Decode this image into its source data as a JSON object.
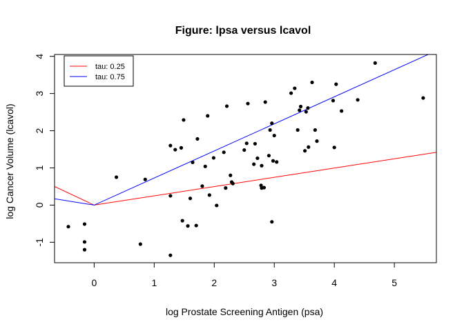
{
  "chart_data": {
    "type": "scatter",
    "title": "Figure: lpsa versus lcavol",
    "xlabel": "log Prostate Screening Antigen (psa)",
    "ylabel": "log Cancer Volume (lcavol)",
    "xlim": [
      -0.66,
      5.7
    ],
    "ylim": [
      -1.55,
      4.05
    ],
    "xticks": [
      0,
      1,
      2,
      3,
      4,
      5
    ],
    "yticks": [
      -1,
      0,
      1,
      2,
      3,
      4
    ],
    "xtick_labels": [
      "0",
      "1",
      "2",
      "3",
      "4",
      "5"
    ],
    "ytick_labels": [
      "-1",
      "0",
      "1",
      "2",
      "3",
      "4"
    ],
    "grid": false,
    "legend_position": "top-left",
    "points": [
      [
        -0.43,
        -0.58
      ],
      [
        -0.16,
        -0.99
      ],
      [
        -0.16,
        -0.51
      ],
      [
        -0.16,
        -1.2
      ],
      [
        0.37,
        0.75
      ],
      [
        0.77,
        -1.05
      ],
      [
        0.85,
        0.69
      ],
      [
        1.27,
        -1.35
      ],
      [
        1.27,
        1.6
      ],
      [
        1.27,
        0.25
      ],
      [
        1.35,
        1.49
      ],
      [
        1.45,
        1.54
      ],
      [
        1.47,
        -0.42
      ],
      [
        1.49,
        2.29
      ],
      [
        1.56,
        -0.56
      ],
      [
        1.6,
        0.18
      ],
      [
        1.64,
        1.15
      ],
      [
        1.7,
        -0.55
      ],
      [
        1.72,
        1.78
      ],
      [
        1.8,
        0.51
      ],
      [
        1.85,
        1.04
      ],
      [
        1.89,
        2.4
      ],
      [
        1.92,
        0.27
      ],
      [
        1.99,
        1.27
      ],
      [
        2.04,
        -0.01
      ],
      [
        2.16,
        1.42
      ],
      [
        2.19,
        0.46
      ],
      [
        2.21,
        2.66
      ],
      [
        2.27,
        0.8
      ],
      [
        2.29,
        0.62
      ],
      [
        2.31,
        0.58
      ],
      [
        2.5,
        1.48
      ],
      [
        2.54,
        1.66
      ],
      [
        2.56,
        2.73
      ],
      [
        2.66,
        1.1
      ],
      [
        2.68,
        1.65
      ],
      [
        2.72,
        1.26
      ],
      [
        2.78,
        0.53
      ],
      [
        2.79,
        0.46
      ],
      [
        2.79,
        1.06
      ],
      [
        2.83,
        0.47
      ],
      [
        2.85,
        2.77
      ],
      [
        2.91,
        1.33
      ],
      [
        2.93,
        2.02
      ],
      [
        2.96,
        2.2
      ],
      [
        2.96,
        -0.45
      ],
      [
        2.98,
        1.19
      ],
      [
        3.0,
        1.87
      ],
      [
        3.04,
        1.16
      ],
      [
        3.28,
        3.01
      ],
      [
        3.34,
        3.14
      ],
      [
        3.39,
        2.02
      ],
      [
        3.42,
        2.55
      ],
      [
        3.44,
        2.65
      ],
      [
        3.51,
        1.46
      ],
      [
        3.53,
        2.51
      ],
      [
        3.56,
        2.61
      ],
      [
        3.57,
        1.56
      ],
      [
        3.63,
        3.3
      ],
      [
        3.68,
        2.02
      ],
      [
        3.71,
        1.72
      ],
      [
        3.98,
        2.81
      ],
      [
        4.0,
        1.55
      ],
      [
        4.03,
        3.25
      ],
      [
        4.12,
        2.53
      ],
      [
        4.39,
        2.83
      ],
      [
        4.68,
        3.82
      ],
      [
        5.48,
        2.88
      ]
    ],
    "series": [
      {
        "name": "tau: 0.25",
        "color": "#ff0000",
        "x": [
          -0.66,
          0.0,
          5.7
        ],
        "y": [
          0.5,
          0.0,
          1.42
        ]
      },
      {
        "name": "tau: 0.75",
        "color": "#0000ff",
        "x": [
          -0.66,
          0.0,
          5.7
        ],
        "y": [
          0.17,
          0.0,
          4.15
        ]
      }
    ]
  }
}
